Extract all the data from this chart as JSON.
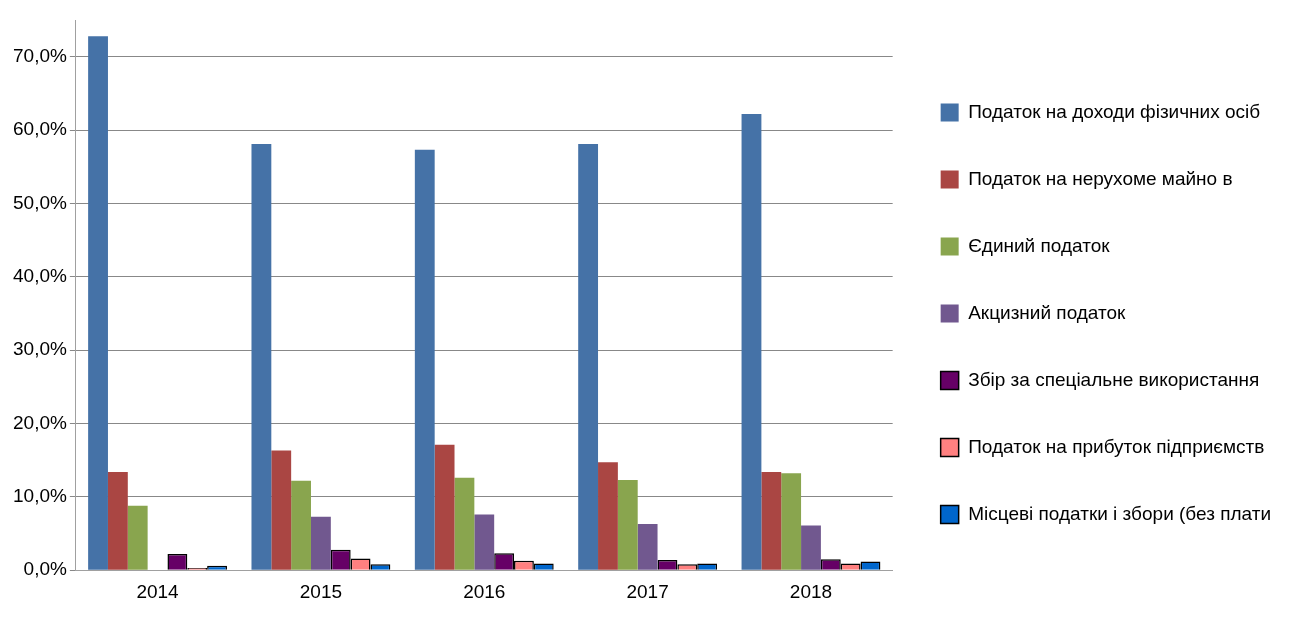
{
  "chart_data": {
    "type": "bar",
    "categories": [
      "2014",
      "2015",
      "2016",
      "2017",
      "2018"
    ],
    "series": [
      {
        "name": "Податок на доходи фізичних осіб",
        "color": "#4572a7",
        "values": [
          72.8,
          58.1,
          57.3,
          58.1,
          62.2
        ]
      },
      {
        "name": "Податок на нерухоме майно в",
        "color": "#aa4643",
        "values": [
          13.4,
          16.3,
          17.1,
          14.7,
          13.4
        ]
      },
      {
        "name": "Єдиний податок",
        "color": "#89a54e",
        "values": [
          8.8,
          12.2,
          12.6,
          12.3,
          13.2
        ]
      },
      {
        "name": "Акцизний податок",
        "color": "#71588f",
        "values": [
          null,
          7.3,
          7.6,
          6.3,
          6.1
        ]
      },
      {
        "name": "Збір за спеціальне використання",
        "color": "#660066",
        "values": [
          2.2,
          2.8,
          2.3,
          1.4,
          1.5
        ]
      },
      {
        "name": "Податок на прибуток підприємств",
        "color": "#ff8080",
        "values": [
          0.3,
          1.6,
          1.3,
          0.8,
          0.9
        ]
      },
      {
        "name": "Місцеві податки і збори (без плати",
        "color": "#0066cc",
        "values": [
          0.6,
          0.8,
          0.9,
          0.9,
          1.2
        ]
      }
    ],
    "ylim": [
      0,
      75
    ],
    "yticks": [
      {
        "value": 0,
        "label": "0,0%"
      },
      {
        "value": 10,
        "label": "10,0%"
      },
      {
        "value": 20,
        "label": "20,0%"
      },
      {
        "value": 30,
        "label": "30,0%"
      },
      {
        "value": 40,
        "label": "40,0%"
      },
      {
        "value": 50,
        "label": "50,0%"
      },
      {
        "value": 60,
        "label": "60,0%"
      },
      {
        "value": 70,
        "label": "70,0%"
      }
    ],
    "grid": "y",
    "legend": "right"
  }
}
